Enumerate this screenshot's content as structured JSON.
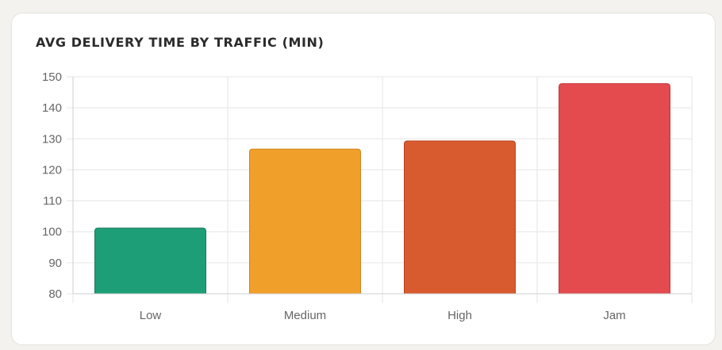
{
  "card": {
    "title": "AVG DELIVERY TIME BY TRAFFIC (MIN)"
  },
  "chart_data": {
    "type": "bar",
    "title": "AVG DELIVERY TIME BY TRAFFIC (MIN)",
    "categories": [
      "Low",
      "Medium",
      "High",
      "Jam"
    ],
    "values": [
      101.2,
      126.7,
      129.3,
      147.8
    ],
    "colors": [
      "#1e9e77",
      "#f09f2a",
      "#d85b30",
      "#e34b4e"
    ],
    "border_colors": [
      "#187a5c",
      "#cf8520",
      "#b8431f",
      "#c43639"
    ],
    "ylim": [
      80,
      150
    ],
    "yticks": [
      80,
      90,
      100,
      110,
      120,
      130,
      140,
      150
    ],
    "xlabel": "",
    "ylabel": "",
    "grid": true,
    "legend": "none"
  }
}
